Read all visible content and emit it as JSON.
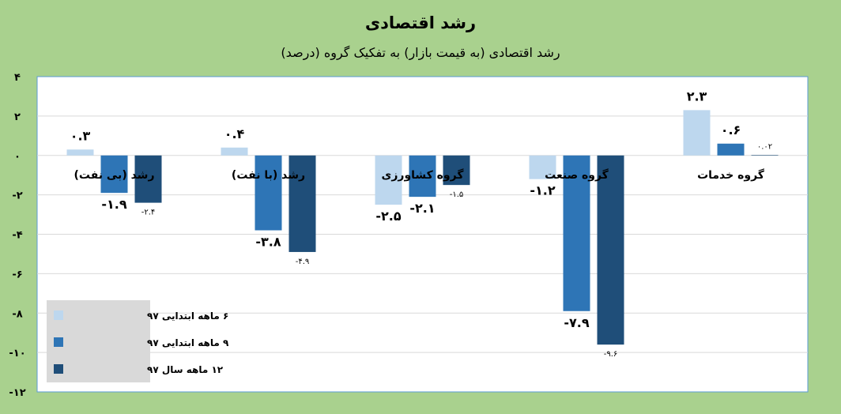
{
  "chart_data": {
    "type": "bar",
    "title": "رشد اقتصادی",
    "subtitle": "رشد اقتصادی (به قیمت بازار) به تفکیک گروه (درصد)",
    "xlabel": "",
    "ylabel": "",
    "ylim": [
      -12,
      4
    ],
    "yticks": [
      4,
      2,
      0,
      -2,
      -4,
      -6,
      -8,
      -10,
      -12
    ],
    "ytick_labels": [
      "۴",
      "۲",
      "۰",
      "-۲",
      "-۴",
      "-۶",
      "-۸",
      "-۱۰",
      "-۱۲"
    ],
    "grid": true,
    "legend_position": "bottom-left",
    "categories": [
      "رشد (بی نفت)",
      "رشد (با نفت)",
      "گروه کشاورزی",
      "گروه صنعت",
      "گروه خدمات"
    ],
    "series": [
      {
        "name": "۶ ماهه ابتدایی ۹۷",
        "color": "#bdd7ee",
        "values": [
          0.3,
          0.4,
          -2.5,
          -1.2,
          2.3
        ],
        "labels": [
          "۰.۳",
          "۰.۴",
          "-۲.۵",
          "-۱.۲",
          "۲.۳"
        ]
      },
      {
        "name": "۹ ماهه ابتدایی ۹۷",
        "color": "#2e75b6",
        "values": [
          -1.9,
          -3.8,
          -2.1,
          -7.9,
          0.6
        ],
        "labels": [
          "-۱.۹",
          "-۳.۸",
          "-۲.۱",
          "-۷.۹",
          "۰.۶"
        ]
      },
      {
        "name": "۱۲ ماهه سال ۹۷",
        "color": "#1f4e79",
        "values": [
          -2.4,
          -4.9,
          -1.5,
          -9.6,
          0.02
        ],
        "labels": [
          "-۲.۴",
          "-۴.۹",
          "-۱.۵",
          "-۹.۶",
          "۰.۰۲"
        ]
      }
    ]
  }
}
